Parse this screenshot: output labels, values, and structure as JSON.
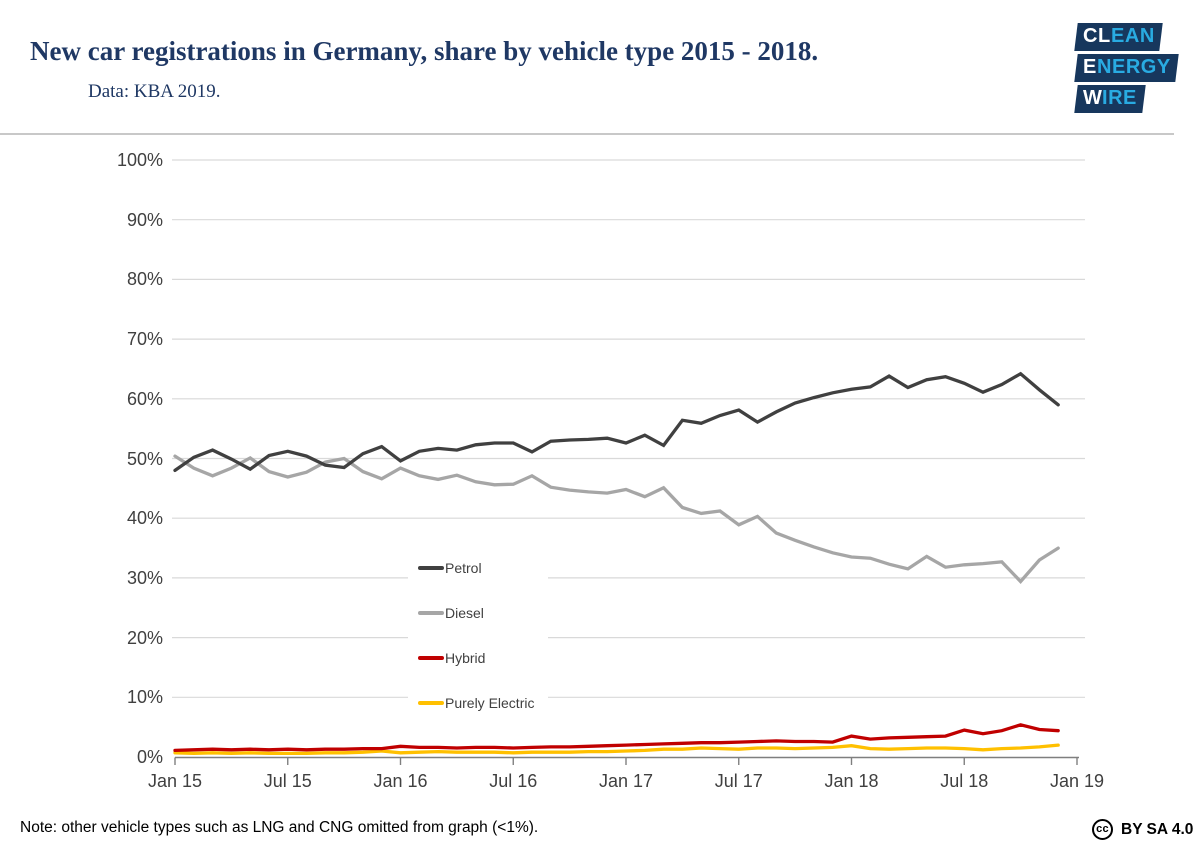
{
  "header": {
    "title": "New car registrations in Germany, share by vehicle type 2015 - 2018.",
    "subtitle": "Data: KBA 2019."
  },
  "logo": {
    "name": "Clean Energy Wire",
    "navy": "#17375d",
    "blue": "#29abe2",
    "lines": [
      {
        "white": "CL",
        "blue": "EAN"
      },
      {
        "white": "E",
        "blue": "NERGY"
      },
      {
        "white": "W",
        "blue": "IRE"
      }
    ]
  },
  "footer": {
    "note": "Note: other vehicle types such as LNG and CNG omitted from graph (<1%).",
    "cc": "cc",
    "license": "BY SA 4.0"
  },
  "chart_data": {
    "type": "line",
    "title": "New car registrations in Germany, share by vehicle type 2015 - 2018",
    "x_frequency": "monthly",
    "x_start": "Jan 2015",
    "x_end": "Dec 2018",
    "x_tick_labels": [
      "Jan 15",
      "Jul 15",
      "Jan 16",
      "Jul 16",
      "Jan 17",
      "Jul 17",
      "Jan 18",
      "Jul 18",
      "Jan 19"
    ],
    "x_tick_month_index": [
      0,
      6,
      12,
      18,
      24,
      30,
      36,
      42,
      48
    ],
    "y_tick_labels": [
      "0%",
      "10%",
      "20%",
      "30%",
      "40%",
      "50%",
      "60%",
      "70%",
      "80%",
      "90%",
      "100%"
    ],
    "y_tick_values": [
      0,
      10,
      20,
      30,
      40,
      50,
      60,
      70,
      80,
      90,
      100
    ],
    "ylim": [
      0,
      100
    ],
    "grid": "horizontal",
    "legend_position": "inside-left, vertical, white box",
    "colors": {
      "gridline": "#d9d9d9",
      "axis": "#7f7f7f",
      "labels": "#404040"
    },
    "series": [
      {
        "name": "Petrol",
        "color": "#404040",
        "values": [
          48.0,
          50.2,
          51.4,
          49.9,
          48.2,
          50.5,
          51.2,
          50.4,
          48.9,
          48.5,
          50.8,
          52.0,
          49.6,
          51.2,
          51.7,
          51.4,
          52.3,
          52.6,
          52.6,
          51.1,
          52.9,
          53.1,
          53.2,
          53.4,
          52.6,
          53.9,
          52.2,
          56.4,
          55.9,
          57.2,
          58.1,
          56.1,
          57.8,
          59.3,
          60.2,
          61.0,
          61.6,
          62.0,
          63.8,
          61.9,
          63.2,
          63.7,
          62.6,
          61.1,
          62.4,
          64.2,
          61.5,
          59.0
        ]
      },
      {
        "name": "Diesel",
        "color": "#a6a6a6",
        "values": [
          50.4,
          48.4,
          47.1,
          48.4,
          50.1,
          47.8,
          46.9,
          47.7,
          49.4,
          50.0,
          47.8,
          46.6,
          48.4,
          47.1,
          46.5,
          47.2,
          46.1,
          45.6,
          45.7,
          47.1,
          45.2,
          44.7,
          44.4,
          44.2,
          44.8,
          43.6,
          45.1,
          41.8,
          40.8,
          41.2,
          38.9,
          40.3,
          37.5,
          36.3,
          35.2,
          34.2,
          33.5,
          33.3,
          32.3,
          31.5,
          33.6,
          31.8,
          32.2,
          32.4,
          32.7,
          29.4,
          33.0,
          35.0
        ]
      },
      {
        "name": "Hybrid",
        "color": "#c00000",
        "values": [
          1.1,
          1.2,
          1.3,
          1.2,
          1.3,
          1.2,
          1.3,
          1.2,
          1.3,
          1.3,
          1.4,
          1.4,
          1.8,
          1.6,
          1.6,
          1.5,
          1.6,
          1.6,
          1.5,
          1.6,
          1.7,
          1.7,
          1.8,
          1.9,
          2.0,
          2.1,
          2.2,
          2.3,
          2.4,
          2.4,
          2.5,
          2.6,
          2.7,
          2.6,
          2.6,
          2.5,
          3.5,
          3.0,
          3.2,
          3.3,
          3.4,
          3.5,
          4.5,
          3.9,
          4.4,
          5.4,
          4.6,
          4.4
        ]
      },
      {
        "name": "Purely Electric",
        "color": "#ffc000",
        "values": [
          0.7,
          0.6,
          0.7,
          0.6,
          0.7,
          0.6,
          0.6,
          0.6,
          0.7,
          0.7,
          0.8,
          1.0,
          0.7,
          0.8,
          0.9,
          0.8,
          0.8,
          0.8,
          0.7,
          0.8,
          0.8,
          0.8,
          0.9,
          0.9,
          1.0,
          1.1,
          1.3,
          1.3,
          1.5,
          1.4,
          1.3,
          1.5,
          1.5,
          1.4,
          1.5,
          1.6,
          1.9,
          1.4,
          1.3,
          1.4,
          1.5,
          1.5,
          1.4,
          1.2,
          1.4,
          1.5,
          1.7,
          2.0
        ]
      }
    ]
  }
}
